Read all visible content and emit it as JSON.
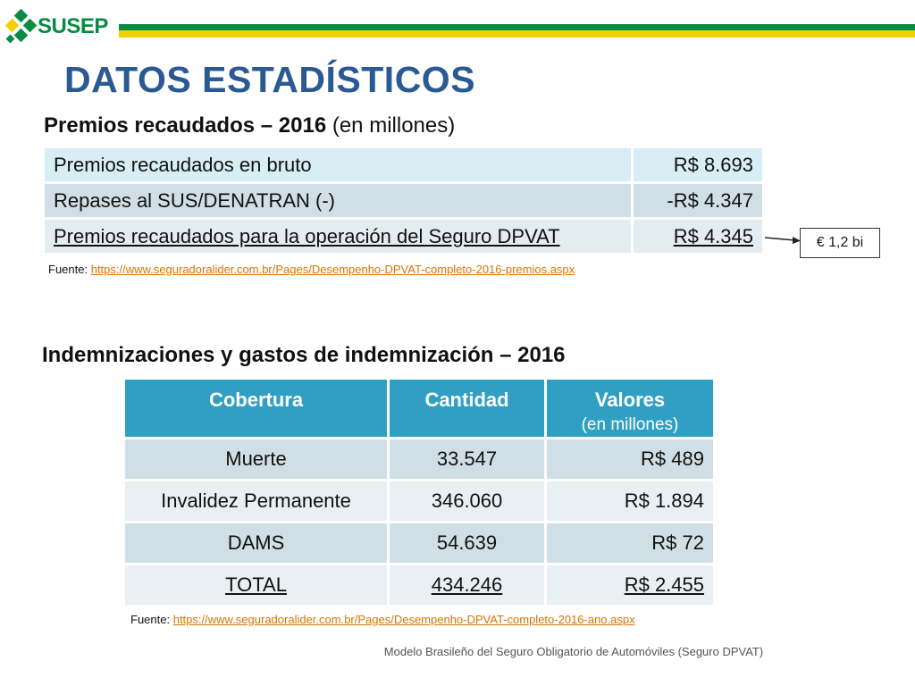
{
  "header": {
    "logo_text": "SUSEP",
    "brand_colors": {
      "green": "#0a8a43",
      "yellow": "#f5d000",
      "title_blue": "#2b5994"
    }
  },
  "title": "DATOS ESTADÍSTICOS",
  "premiums": {
    "heading": "Premios recaudados – 2016",
    "heading_note": "(en millones)",
    "rows": [
      {
        "label": "Premios recaudados en bruto",
        "amount": "R$ 8.693"
      },
      {
        "label": "Repases al SUS/DENATRAN (-)",
        "amount": "-R$ 4.347"
      },
      {
        "label": "Premios recaudados para la operación del Seguro DPVAT",
        "amount": "R$ 4.345"
      }
    ],
    "source_label": "Fuente:",
    "source_url": "https://www.seguradoralider.com.br/Pages/Desempenho-DPVAT-completo-2016-premios.aspx",
    "euro_callout": "€ 1,2 bi"
  },
  "indemnities": {
    "heading": "Indemnizaciones y gastos de indemnización – 2016",
    "columns": [
      "Cobertura",
      "Cantidad",
      "Valores"
    ],
    "values_note": "(en millones)",
    "rows": [
      {
        "coverage": "Muerte",
        "quantity": "33.547",
        "value": "R$ 489"
      },
      {
        "coverage": "Invalidez Permanente",
        "quantity": "346.060",
        "value": "R$ 1.894"
      },
      {
        "coverage": "DAMS",
        "quantity": "54.639",
        "value": "R$ 72"
      },
      {
        "coverage": "TOTAL",
        "quantity": "434.246",
        "value": "R$ 2.455"
      }
    ],
    "source_label": "Fuente:",
    "source_url": "https://www.seguradoralider.com.br/Pages/Desempenho-DPVAT-completo-2016-ano.aspx"
  },
  "footer": "Modelo Brasileño del Seguro Obligatorio de Automóviles (Seguro DPVAT)"
}
